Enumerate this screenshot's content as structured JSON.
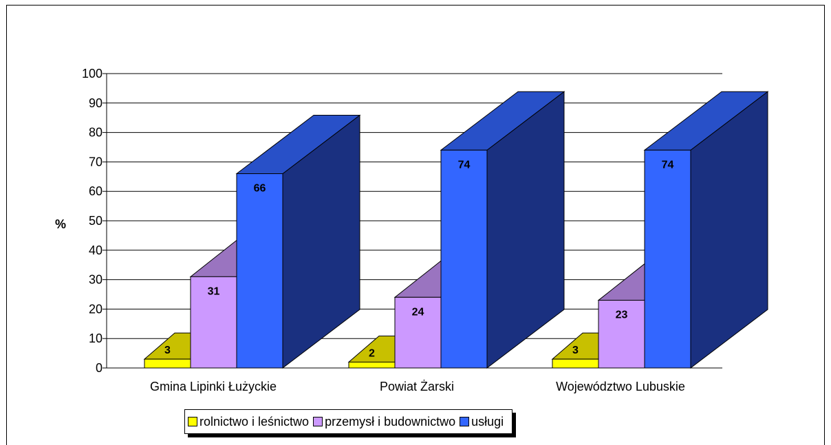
{
  "chart_data": {
    "type": "bar",
    "title": "",
    "xlabel": "",
    "ylabel": "%",
    "ylim": [
      0,
      100
    ],
    "yticks": [
      0,
      10,
      20,
      30,
      40,
      50,
      60,
      70,
      80,
      90,
      100
    ],
    "categories": [
      "Gmina Lipinki Łużyckie",
      "Powiat Żarski",
      "Województwo Lubuskie"
    ],
    "series": [
      {
        "name": "rolnictwo i leśnictwo",
        "values": [
          3,
          2,
          3
        ],
        "color": "#ffff00",
        "top_color": "#c8c000"
      },
      {
        "name": "przemysł i budownictwo",
        "values": [
          31,
          24,
          23
        ],
        "color": "#cc99ff",
        "top_color": "#9a74c0"
      },
      {
        "name": "usługi",
        "values": [
          66,
          74,
          74
        ],
        "color": "#3366ff",
        "top_color": "#2850c8",
        "side_color": "#1a3080"
      }
    ],
    "grid": true,
    "legend_position": "bottom",
    "style": "3d-stacked-depth"
  }
}
